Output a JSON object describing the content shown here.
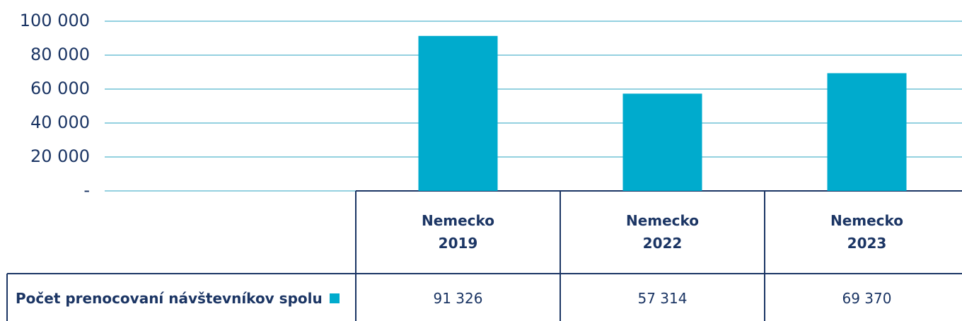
{
  "chart_data": {
    "type": "bar",
    "categories": [
      "Nemecko 2019",
      "Nemecko 2022",
      "Nemecko 2023"
    ],
    "series": [
      {
        "name": "Počet prenocovaní návštevníkov spolu",
        "color": "#00abcd",
        "values": [
          91326,
          57314,
          69370
        ],
        "value_labels": [
          "91 326",
          "57 314",
          "69 370"
        ]
      }
    ],
    "ylim": [
      0,
      100000
    ],
    "yticks": [
      {
        "value": 0,
        "label": "-"
      },
      {
        "value": 20000,
        "label": "20 000"
      },
      {
        "value": 40000,
        "label": "40 000"
      },
      {
        "value": 60000,
        "label": "60 000"
      },
      {
        "value": 80000,
        "label": "80 000"
      },
      {
        "value": 100000,
        "label": "100 000"
      }
    ],
    "grid": true
  }
}
